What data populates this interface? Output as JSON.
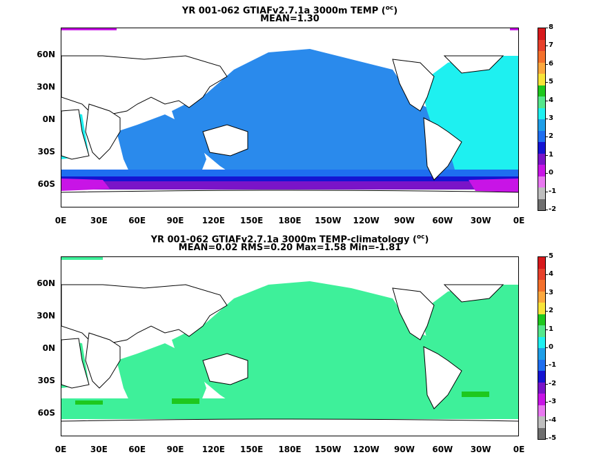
{
  "chart_data": [
    {
      "type": "heatmap",
      "title": "YR 001-062 GTIAFv2.7.1a 3000m TEMP (",
      "title_unit": "oc",
      "subtitle": "MEAN=1.30",
      "lat_ticks": [
        "60N",
        "30N",
        "0N",
        "30S",
        "60S"
      ],
      "lon_ticks": [
        "0E",
        "30E",
        "60E",
        "90E",
        "120E",
        "150E",
        "180E",
        "150W",
        "120W",
        "90W",
        "60W",
        "30W",
        "0E"
      ],
      "colorbar": {
        "labels": [
          "8",
          "7",
          "6",
          "5",
          "4",
          "3",
          "2",
          "1",
          "0",
          "-1",
          "-2"
        ],
        "colors": [
          "#d7191c",
          "#e8412c",
          "#f4702c",
          "#fca83e",
          "#f8e43a",
          "#1ec81e",
          "#54e88c",
          "#1ef0f0",
          "#1e9ee8",
          "#1e6ef0",
          "#1414d2",
          "#7a14c8",
          "#c814e6",
          "#e878f0",
          "#bebebe",
          "#6e6e6e"
        ]
      }
    },
    {
      "type": "heatmap",
      "title": "YR 001-062 GTIAFv2.7.1a 3000m TEMP-climatology (",
      "title_unit": "oc",
      "subtitle": "MEAN=0.02   RMS=0.20   Max=1.58   Min=-1.81",
      "lat_ticks": [
        "60N",
        "30N",
        "0N",
        "30S",
        "60S"
      ],
      "lon_ticks": [
        "0E",
        "30E",
        "60E",
        "90E",
        "120E",
        "150E",
        "180E",
        "150W",
        "120W",
        "90W",
        "60W",
        "30W",
        "0E"
      ],
      "colorbar": {
        "labels": [
          "5",
          "4",
          "3",
          "2",
          "1",
          "0",
          "-1",
          "-2",
          "-3",
          "-4",
          "-5"
        ],
        "colors": [
          "#d7191c",
          "#e8412c",
          "#f4702c",
          "#fca83e",
          "#f8e43a",
          "#1ec81e",
          "#54e88c",
          "#1ef0f0",
          "#1e9ee8",
          "#1e6ef0",
          "#1414d2",
          "#7a14c8",
          "#c814e6",
          "#e878f0",
          "#bebebe",
          "#6e6e6e"
        ]
      }
    }
  ],
  "colors": {
    "pacific_main": "#2a8aec",
    "atlantic_main": "#1ef0f0",
    "southern_ring": "#1414d2",
    "anomaly_main": "#3ef09a",
    "anomaly_strong": "#1ec81e",
    "land": "#ffffff"
  }
}
